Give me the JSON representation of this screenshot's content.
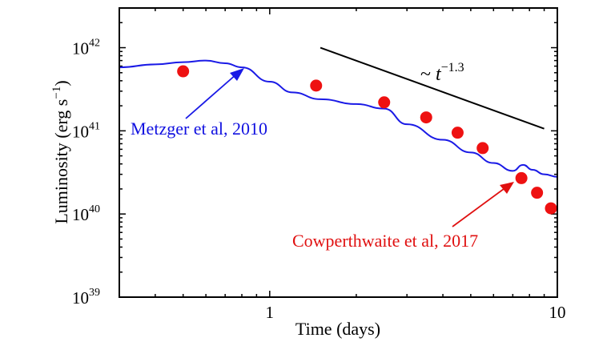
{
  "chart_data": {
    "type": "line",
    "xlabel": "Time (days)",
    "ylabel": "Luminosity (erg s",
    "ylabel_unit_exp": "−1",
    "ylabel_close": ")",
    "x_scale": "log",
    "y_scale": "log",
    "xlim": [
      0.3,
      10
    ],
    "ylim": [
      1e+39,
      3e+42
    ],
    "x_ticks": [
      {
        "value": 1,
        "label": "1"
      },
      {
        "value": 10,
        "label": "10"
      }
    ],
    "y_ticks": [
      {
        "value": 1e+39,
        "base": "10",
        "exp": "39"
      },
      {
        "value": 1e+40,
        "base": "10",
        "exp": "40"
      },
      {
        "value": 1e+41,
        "base": "10",
        "exp": "41"
      },
      {
        "value": 1e+42,
        "base": "10",
        "exp": "42"
      }
    ],
    "series": [
      {
        "name": "Metzger et al, 2010",
        "kind": "line",
        "color": "#1a1ae6",
        "x": [
          0.3,
          0.4,
          0.5,
          0.6,
          0.7,
          0.8,
          1.0,
          1.2,
          1.5,
          2.0,
          2.5,
          3.0,
          4.0,
          5.0,
          6.0,
          7.0,
          7.6,
          8.2,
          9.0,
          10.0
        ],
        "y": [
          5.8e+41,
          6.3e+41,
          6.7e+41,
          7e+41,
          6.5e+41,
          5.8e+41,
          3.9e+41,
          2.9e+41,
          2.4e+41,
          2.1e+41,
          1.85e+41,
          1.2e+41,
          7.8e+40,
          5.5e+40,
          4.1e+40,
          3.3e+40,
          3.9e+40,
          3.4e+40,
          3e+40,
          2.8e+40
        ]
      },
      {
        "name": "Cowperthwaite et al, 2017",
        "kind": "scatter",
        "color": "#ee1111",
        "x": [
          0.5,
          1.45,
          2.5,
          3.5,
          4.5,
          5.5,
          7.5,
          8.5,
          9.5
        ],
        "y": [
          5.2e+41,
          3.5e+41,
          2.2e+41,
          1.45e+41,
          9.5e+40,
          6.2e+40,
          2.7e+40,
          1.8e+40,
          1.17e+40
        ]
      }
    ],
    "reference_line": {
      "x": [
        1.5,
        9.0
      ],
      "y": [
        1e+42,
        1.06e+41
      ],
      "label_prefix": "~ ",
      "label_var": "t",
      "label_exp": "−1.3"
    }
  }
}
